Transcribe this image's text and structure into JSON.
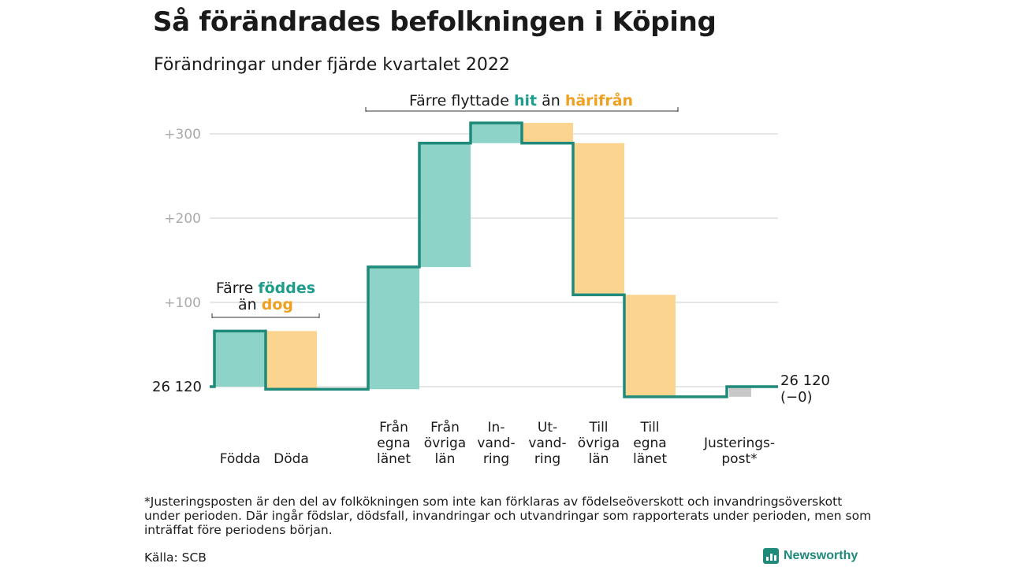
{
  "title": "Så förändrades befolkningen i Köping",
  "subtitle": "Förändringar under fjärde kvartalet 2022",
  "colors": {
    "in": "#8dd3c7",
    "out": "#fbd48f",
    "adjust": "#c8c8c8",
    "line": "#1f8a7a",
    "hit": "#1f9c8c",
    "away": "#f0a020",
    "grid": "#dddddd",
    "tick": "#aaaaaa"
  },
  "brackets": {
    "births_deaths": {
      "line1": "Färre",
      "hit_word": "föddes",
      "line2": "än",
      "away_word": "dog"
    },
    "migration": {
      "pre": "Färre flyttade",
      "hit_word": "hit",
      "mid": "än",
      "away_word": "härifrån"
    }
  },
  "start_label": "26 120",
  "end_label_1": "26 120",
  "end_label_2": "(−0)",
  "chart_data": {
    "type": "waterfall",
    "start_value": 26120,
    "end_value": 26120,
    "net_change": 0,
    "yticks": [
      "+300",
      "+200",
      "+100"
    ],
    "ytick_values": [
      300,
      200,
      100
    ],
    "ylim": [
      -20,
      320
    ],
    "categories": [
      {
        "label_lines": [
          "Födda"
        ],
        "delta": 66,
        "kind": "in"
      },
      {
        "label_lines": [
          "Döda"
        ],
        "delta": -69,
        "kind": "out"
      },
      {
        "label_lines": [
          "Från",
          "egna",
          "länet"
        ],
        "delta": 145,
        "kind": "in"
      },
      {
        "label_lines": [
          "Från",
          "övriga",
          "län"
        ],
        "delta": 147,
        "kind": "in"
      },
      {
        "label_lines": [
          "In-",
          "vand-",
          "ring"
        ],
        "delta": 24,
        "kind": "in"
      },
      {
        "label_lines": [
          "Ut-",
          "vand-",
          "ring"
        ],
        "delta": -24,
        "kind": "out"
      },
      {
        "label_lines": [
          "Till",
          "övriga",
          "län"
        ],
        "delta": -180,
        "kind": "out"
      },
      {
        "label_lines": [
          "Till",
          "egna",
          "länet"
        ],
        "delta": -121,
        "kind": "out"
      },
      {
        "label_lines": [
          "Justerings-",
          "post*"
        ],
        "delta": 12,
        "kind": "adjust"
      }
    ]
  },
  "footnote": "*Justeringsposten är den del av folkökningen som inte kan förklaras av födelseöverskott och invandringsöverskott under perioden. Där ingår födslar, dödsfall, invandringar och utvandringar som rapporterats under perioden, men som inträffat före periodens början.",
  "source": "Källa: SCB",
  "logo_text": "Newsworthy",
  "logo_icon": "bar-chart-icon"
}
